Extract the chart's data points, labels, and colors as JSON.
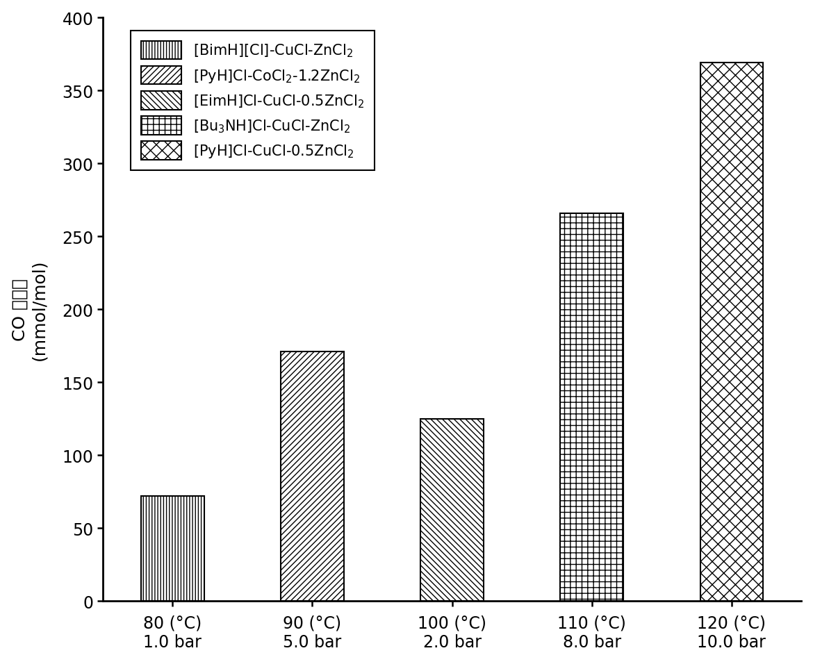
{
  "bars": [
    {
      "label": "80 (°C)\n1.0 bar",
      "value": 72,
      "hatch": "||||",
      "legend_text": "[BimH][Cl]-CuCl-ZnCl$_2$"
    },
    {
      "label": "90 (°C)\n5.0 bar",
      "value": 171,
      "hatch": "////",
      "legend_text": "[PyH]Cl-CoCl$_2$-1.2ZnCl$_2$"
    },
    {
      "label": "100 (°C)\n2.0 bar",
      "value": 125,
      "hatch": "\\\\\\\\",
      "legend_text": "[EimH]Cl-CuCl-0.5ZnCl$_2$"
    },
    {
      "label": "110 (°C)\n8.0 bar",
      "value": 266,
      "hatch": "++",
      "legend_text": "[Bu$_3$NH]Cl-CuCl-ZnCl$_2$"
    },
    {
      "label": "120 (°C)\n10.0 bar",
      "value": 369,
      "hatch": "xx",
      "legend_text": "[PyH]Cl-CuCl-0.5ZnCl$_2$"
    }
  ],
  "ylabel_cn": "CO 吸收量",
  "ylabel_en": "(mmol/mol)",
  "ylim": [
    0,
    400
  ],
  "yticks": [
    0,
    50,
    100,
    150,
    200,
    250,
    300,
    350,
    400
  ],
  "bar_color": "white",
  "bar_edgecolor": "black",
  "bar_linewidth": 1.5,
  "bar_width": 0.45,
  "figure_width": 11.7,
  "figure_height": 9.54,
  "dpi": 100
}
